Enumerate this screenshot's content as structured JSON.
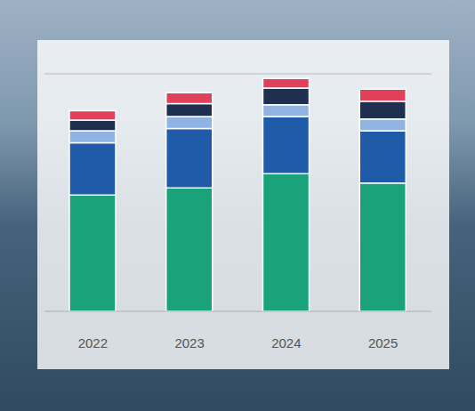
{
  "chart_data": {
    "type": "bar",
    "stacked": true,
    "categories": [
      "2022",
      "2023",
      "2024",
      "2025"
    ],
    "series": [
      {
        "color": "#1aa37a",
        "values": [
          4.9,
          5.2,
          5.8,
          5.4
        ]
      },
      {
        "color": "#1f5ba8",
        "values": [
          2.2,
          2.5,
          2.4,
          2.2
        ]
      },
      {
        "color": "#8fb4e3",
        "values": [
          0.5,
          0.5,
          0.5,
          0.5
        ]
      },
      {
        "color": "#1f2f4f",
        "values": [
          0.45,
          0.55,
          0.7,
          0.75
        ]
      },
      {
        "color": "#e0405a",
        "values": [
          0.4,
          0.45,
          0.4,
          0.5
        ]
      }
    ],
    "ylim": [
      0,
      10
    ],
    "yticks": [
      0,
      1,
      2,
      3,
      4,
      5,
      6,
      7,
      8,
      9,
      10
    ],
    "grid": true,
    "tick_labels": "x"
  }
}
